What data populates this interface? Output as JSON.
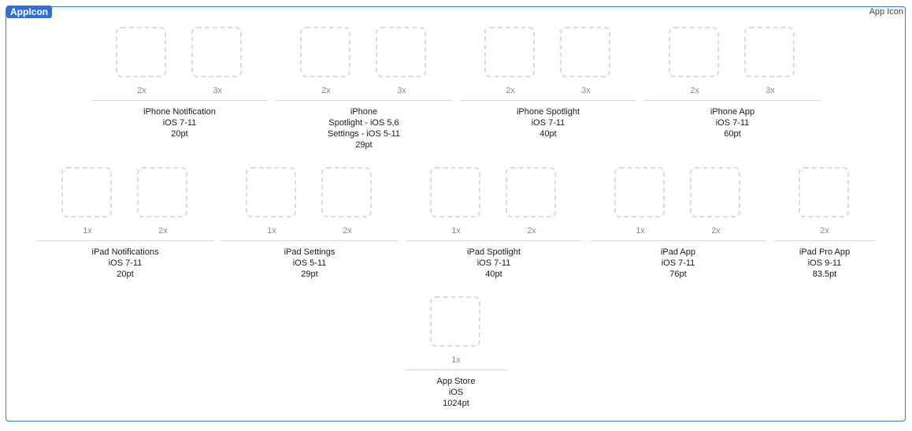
{
  "header": {
    "title": "AppIcon",
    "kind_label": "App Icon"
  },
  "groups": [
    {
      "slots": [
        "2x",
        "3x"
      ],
      "lines": [
        "iPhone Notification",
        "iOS 7-11",
        "20pt"
      ]
    },
    {
      "slots": [
        "2x",
        "3x"
      ],
      "lines": [
        "iPhone",
        "Spotlight - iOS 5,6",
        "Settings - iOS 5-11",
        "29pt"
      ]
    },
    {
      "slots": [
        "2x",
        "3x"
      ],
      "lines": [
        "iPhone Spotlight",
        "iOS 7-11",
        "40pt"
      ]
    },
    {
      "slots": [
        "2x",
        "3x"
      ],
      "lines": [
        "iPhone App",
        "iOS 7-11",
        "60pt"
      ]
    },
    {
      "slots": [
        "1x",
        "2x"
      ],
      "lines": [
        "iPad Notifications",
        "iOS 7-11",
        "20pt"
      ]
    },
    {
      "slots": [
        "1x",
        "2x"
      ],
      "lines": [
        "iPad Settings",
        "iOS 5-11",
        "29pt"
      ]
    },
    {
      "slots": [
        "1x",
        "2x"
      ],
      "lines": [
        "iPad Spotlight",
        "iOS 7-11",
        "40pt"
      ]
    },
    {
      "slots": [
        "1x",
        "2x"
      ],
      "lines": [
        "iPad App",
        "iOS 7-11",
        "76pt"
      ]
    },
    {
      "slots": [
        "2x"
      ],
      "lines": [
        "iPad Pro App",
        "iOS 9-11",
        "83.5pt"
      ]
    },
    {
      "slots": [
        "1x"
      ],
      "lines": [
        "App Store",
        "iOS",
        "1024pt"
      ]
    }
  ]
}
